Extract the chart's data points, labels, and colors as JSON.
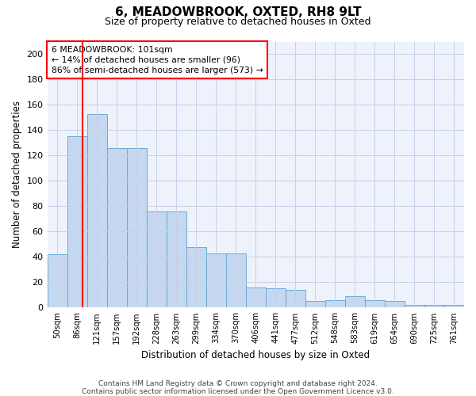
{
  "title1": "6, MEADOWBROOK, OXTED, RH8 9LT",
  "title2": "Size of property relative to detached houses in Oxted",
  "xlabel": "Distribution of detached houses by size in Oxted",
  "ylabel": "Number of detached properties",
  "categories": [
    "50sqm",
    "86sqm",
    "121sqm",
    "157sqm",
    "192sqm",
    "228sqm",
    "263sqm",
    "299sqm",
    "334sqm",
    "370sqm",
    "406sqm",
    "441sqm",
    "477sqm",
    "512sqm",
    "548sqm",
    "583sqm",
    "619sqm",
    "654sqm",
    "690sqm",
    "725sqm",
    "761sqm"
  ],
  "values": [
    42,
    135,
    153,
    126,
    126,
    76,
    76,
    48,
    43,
    43,
    16,
    15,
    14,
    5,
    6,
    9,
    6,
    5,
    2,
    2,
    2
  ],
  "bar_color": "#c5d8f0",
  "bar_edge_color": "#6aaad4",
  "bar_width": 1.0,
  "ylim": [
    0,
    210
  ],
  "yticks": [
    0,
    20,
    40,
    60,
    80,
    100,
    120,
    140,
    160,
    180,
    200
  ],
  "red_line_x": 1.27,
  "annotation_text": "6 MEADOWBROOK: 101sqm\n← 14% of detached houses are smaller (96)\n86% of semi-detached houses are larger (573) →",
  "annotation_box_color": "white",
  "annotation_box_edge_color": "red",
  "bg_color": "#eef2fb",
  "grid_color": "#c8cfe8",
  "footnote": "Contains HM Land Registry data © Crown copyright and database right 2024.\nContains public sector information licensed under the Open Government Licence v3.0."
}
